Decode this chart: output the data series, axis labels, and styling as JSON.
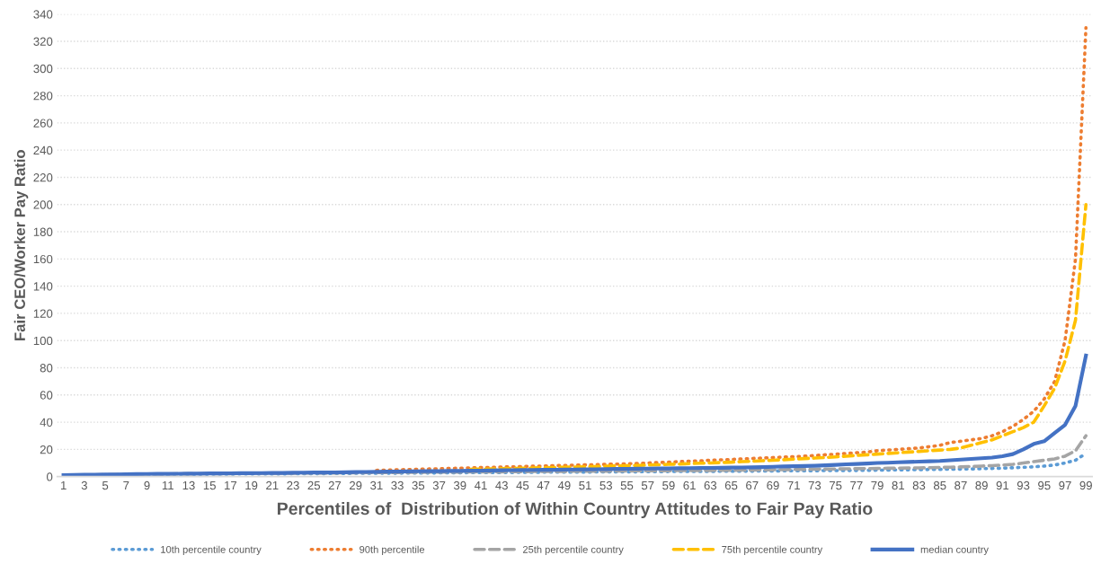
{
  "chart_data": {
    "type": "line",
    "xlabel": "Percentiles of  Distribution of Within Country Attitudes to Fair Pay Ratio",
    "ylabel": "Fair CEO/Worker Pay Ratio",
    "categories": [
      "1",
      null,
      "3",
      null,
      "5",
      null,
      "7",
      null,
      "9",
      null,
      "11",
      null,
      "13",
      null,
      "15",
      null,
      "17",
      null,
      "19",
      null,
      "21",
      null,
      "23",
      null,
      "25",
      null,
      "27",
      null,
      "29",
      null,
      "31",
      null,
      "33",
      null,
      "35",
      null,
      "37",
      null,
      "39",
      null,
      "41",
      null,
      "43",
      null,
      "45",
      null,
      "47",
      null,
      "49",
      null,
      "51",
      null,
      "53",
      null,
      "55",
      null,
      "57",
      null,
      "59",
      null,
      "61",
      null,
      "63",
      null,
      "65",
      null,
      "67",
      null,
      "69",
      null,
      "71",
      null,
      "73",
      null,
      "75",
      null,
      "77",
      null,
      "79",
      null,
      "81",
      null,
      "83",
      null,
      "85",
      null,
      "87",
      null,
      "89",
      null,
      "91",
      null,
      "93",
      null,
      "95",
      null,
      "97",
      null,
      "99"
    ],
    "ylim": [
      0,
      340
    ],
    "yticks": [
      0,
      20,
      40,
      60,
      80,
      100,
      120,
      140,
      160,
      180,
      200,
      220,
      240,
      260,
      280,
      300,
      320,
      340
    ],
    "grid": "y",
    "legend": "bottom",
    "marker": "none",
    "series": [
      {
        "name": "10th percentile country",
        "color": "#5b9bd5",
        "line_style": "dotted",
        "values": [
          1,
          1.1,
          1.1,
          1.2,
          1.2,
          1.3,
          1.3,
          1.4,
          1.4,
          1.5,
          1.5,
          1.6,
          1.6,
          1.7,
          1.7,
          1.8,
          1.8,
          1.9,
          1.9,
          2,
          2,
          2,
          2.1,
          2.1,
          2.2,
          2.2,
          2.3,
          2.3,
          2.4,
          2.4,
          2.5,
          2.5,
          2.5,
          2.6,
          2.6,
          2.7,
          2.7,
          2.8,
          2.8,
          2.9,
          2.9,
          2.9,
          3,
          3,
          3.1,
          3.1,
          3.2,
          3.2,
          3.2,
          3.3,
          3.3,
          3.4,
          3.4,
          3.5,
          3.5,
          3.5,
          3.6,
          3.6,
          3.7,
          3.7,
          3.8,
          3.8,
          3.8,
          3.9,
          3.9,
          4,
          4,
          4.1,
          4.1,
          4.2,
          4.2,
          4.3,
          4.3,
          4.4,
          4.4,
          4.5,
          4.5,
          4.6,
          4.7,
          4.8,
          4.9,
          5,
          5.1,
          5.2,
          5.3,
          5.4,
          5.5,
          5.6,
          5.8,
          6,
          6.2,
          6.5,
          6.8,
          7.2,
          7.7,
          8.5,
          10,
          12,
          17
        ]
      },
      {
        "name": "90th percentile",
        "color": "#ed7d31",
        "line_style": "dotted",
        "values": [
          null,
          null,
          null,
          null,
          null,
          null,
          null,
          null,
          null,
          null,
          null,
          null,
          null,
          null,
          null,
          null,
          null,
          null,
          null,
          null,
          null,
          null,
          null,
          null,
          null,
          null,
          null,
          null,
          null,
          null,
          4.6,
          4.8,
          5,
          5.2,
          5.4,
          5.6,
          5.8,
          6,
          6.2,
          6.4,
          6.6,
          6.8,
          7,
          7.2,
          7.4,
          7.6,
          7.8,
          8,
          8.2,
          8.4,
          8.6,
          8.8,
          9,
          9.2,
          9.4,
          9.6,
          10,
          10.3,
          10.6,
          11,
          11.3,
          11.6,
          12,
          12.3,
          12.6,
          13,
          13.3,
          13.6,
          14,
          14.3,
          14.6,
          15,
          15.5,
          16,
          16.5,
          17,
          17.5,
          18,
          19,
          19.5,
          20,
          20.5,
          21,
          22,
          23,
          25,
          26,
          27,
          28,
          30,
          33,
          37,
          42,
          48,
          57,
          70,
          100,
          160,
          330
        ]
      },
      {
        "name": "25th percentile country",
        "color": "#a5a5a5",
        "line_style": "dashed",
        "values": [
          1,
          1.1,
          1.2,
          1.3,
          1.4,
          1.5,
          1.6,
          1.7,
          1.8,
          1.8,
          1.9,
          2,
          2,
          2.1,
          2.1,
          2.2,
          2.2,
          2.3,
          2.3,
          2.4,
          2.4,
          2.5,
          2.5,
          2.6,
          2.6,
          2.7,
          2.7,
          2.8,
          2.8,
          2.9,
          2.9,
          3,
          3,
          3.1,
          3.1,
          3.2,
          3.2,
          3.3,
          3.3,
          3.4,
          3.4,
          3.5,
          3.5,
          3.6,
          3.6,
          3.7,
          3.7,
          3.8,
          3.8,
          3.9,
          3.9,
          4,
          4,
          4.1,
          4.1,
          4.2,
          4.2,
          4.3,
          4.3,
          4.4,
          4.4,
          4.5,
          4.5,
          4.6,
          4.6,
          4.7,
          4.8,
          4.9,
          5,
          5.1,
          5.2,
          5.3,
          5.4,
          5.5,
          5.6,
          5.7,
          5.8,
          5.9,
          6,
          6.1,
          6.2,
          6.3,
          6.4,
          6.5,
          6.7,
          6.9,
          7.1,
          7.4,
          7.7,
          8,
          8.5,
          9,
          10,
          11,
          12,
          13,
          15,
          19,
          30
        ]
      },
      {
        "name": "75th percentile country",
        "color": "#ffc000",
        "line_style": "dashed",
        "values": [
          null,
          null,
          null,
          null,
          null,
          null,
          null,
          null,
          null,
          null,
          null,
          null,
          null,
          null,
          null,
          null,
          null,
          null,
          null,
          null,
          null,
          null,
          null,
          null,
          null,
          null,
          null,
          null,
          null,
          null,
          null,
          null,
          null,
          null,
          null,
          null,
          null,
          null,
          null,
          5.3,
          5.5,
          5.6,
          5.8,
          6,
          6.1,
          6.3,
          6.5,
          6.7,
          6.9,
          7,
          7.2,
          7.4,
          7.6,
          7.8,
          8,
          8.2,
          8.5,
          8.7,
          9,
          9.2,
          9.5,
          9.8,
          10,
          10.3,
          10.6,
          11,
          11.3,
          11.7,
          12,
          12.4,
          12.8,
          13.2,
          13.6,
          14,
          14.5,
          15,
          15.5,
          16,
          16.5,
          17,
          17.5,
          18,
          18.5,
          19,
          19.5,
          20,
          21,
          23,
          25,
          27,
          30,
          33,
          36,
          40,
          52,
          65,
          85,
          115,
          200
        ]
      },
      {
        "name": "median country",
        "color": "#4472c4",
        "line_style": "solid",
        "values": [
          1,
          1.2,
          1.3,
          1.4,
          1.5,
          1.6,
          1.7,
          1.8,
          1.9,
          2,
          2,
          2.1,
          2.2,
          2.2,
          2.3,
          2.3,
          2.4,
          2.5,
          2.5,
          2.6,
          2.7,
          2.7,
          2.8,
          2.9,
          3,
          3,
          3.1,
          3.2,
          3.3,
          3.4,
          3.5,
          3.6,
          3.7,
          3.8,
          3.9,
          4,
          4,
          4.1,
          4.2,
          4.3,
          4.4,
          4.5,
          4.6,
          4.7,
          4.8,
          4.9,
          5,
          5,
          5.1,
          5.2,
          5.3,
          5.4,
          5.5,
          5.6,
          5.7,
          5.8,
          5.9,
          6,
          6,
          6.1,
          6.2,
          6.3,
          6.4,
          6.5,
          6.6,
          6.7,
          6.8,
          7,
          7.2,
          7.4,
          7.6,
          7.8,
          8,
          8.3,
          8.6,
          9,
          9.3,
          9.6,
          10,
          10.2,
          10.5,
          10.7,
          11,
          11.2,
          11.5,
          12,
          12.5,
          13,
          13.5,
          14,
          15,
          16.5,
          20,
          24,
          26,
          32,
          38,
          52,
          89
        ]
      }
    ]
  }
}
